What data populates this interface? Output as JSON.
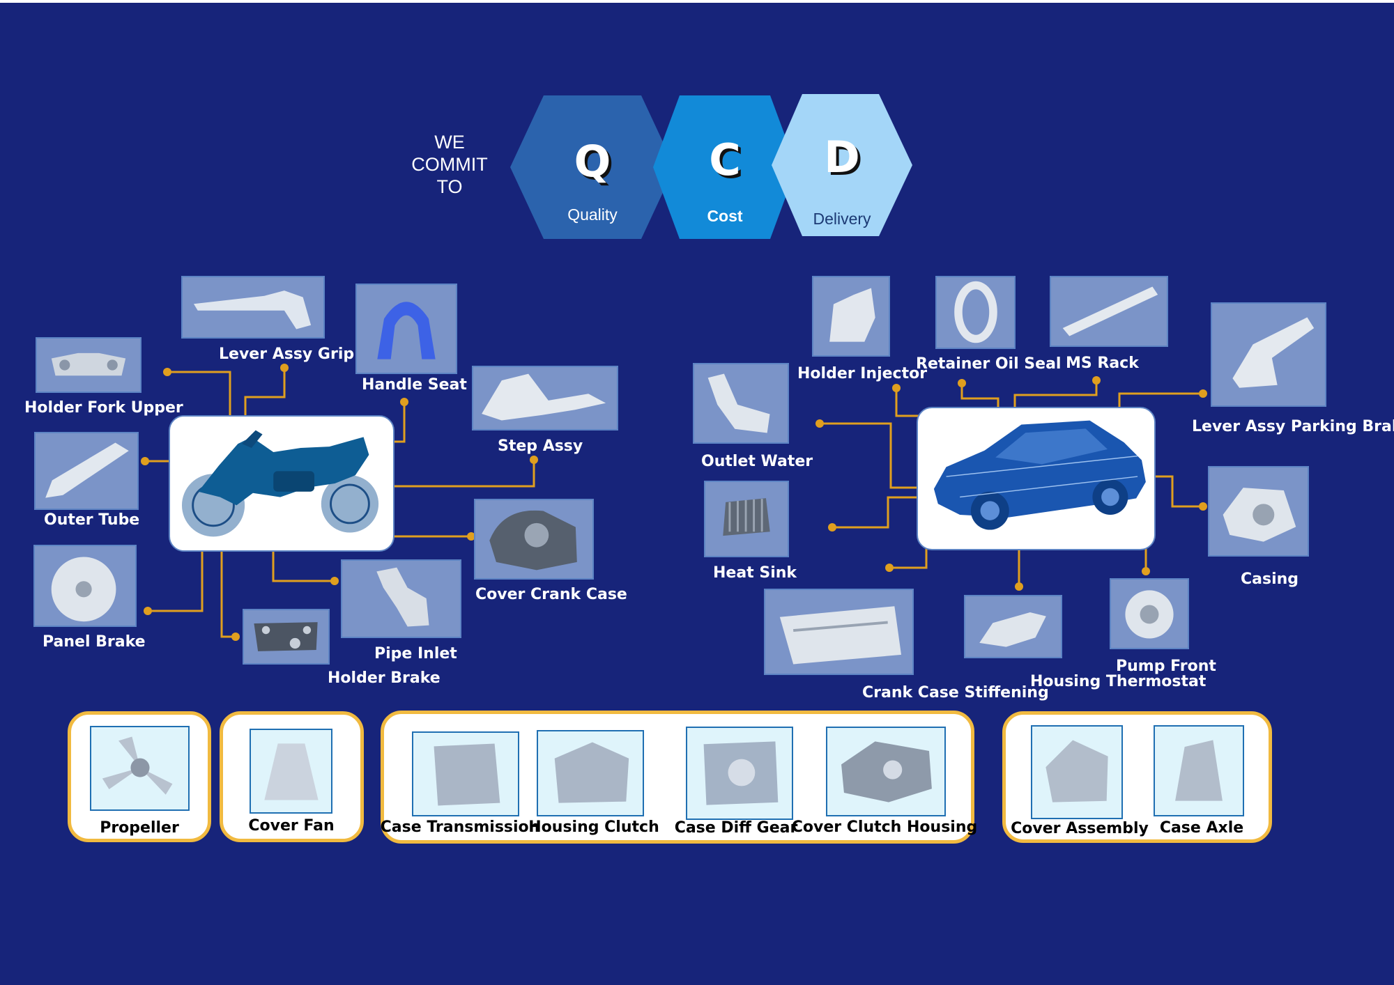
{
  "commit": {
    "line1": "WE",
    "line2": "COMMIT",
    "line3": "TO"
  },
  "qcd": [
    {
      "letter": "Q",
      "word": "Quality",
      "color": "#2b63ad"
    },
    {
      "letter": "C",
      "word": "Cost",
      "color": "#128ad8"
    },
    {
      "letter": "D",
      "word": "Delivery",
      "color": "#a4d6f8"
    }
  ],
  "motorcycle_parts": [
    "Lever Assy Grip",
    "Handle Seat",
    "Holder Fork Upper",
    "Step Assy",
    "Outer Tube",
    "Cover Crank Case",
    "Panel Brake",
    "Pipe Inlet",
    "Holder Brake"
  ],
  "car_parts": [
    "Holder Injector",
    "Retainer Oil Seal",
    "MS Rack",
    "Lever Assy Parking Brake",
    "Outlet Water",
    "Heat Sink",
    "Casing",
    "Crank Case Stiffening",
    "Pump Front",
    "Housing Thermostat"
  ],
  "groups": [
    {
      "items": [
        "Propeller"
      ]
    },
    {
      "items": [
        "Cover Fan"
      ]
    },
    {
      "items": [
        "Case Transmission",
        "Housing Clutch",
        "Case Diff Gear",
        "Cover Clutch Housing"
      ]
    },
    {
      "items": [
        "Cover Assembly",
        "Case Axle"
      ]
    }
  ],
  "colors": {
    "background": "#17247a",
    "connector": "#e09f1f",
    "group_border": "#f1ba40",
    "thumbnail": "#7b94c8"
  }
}
